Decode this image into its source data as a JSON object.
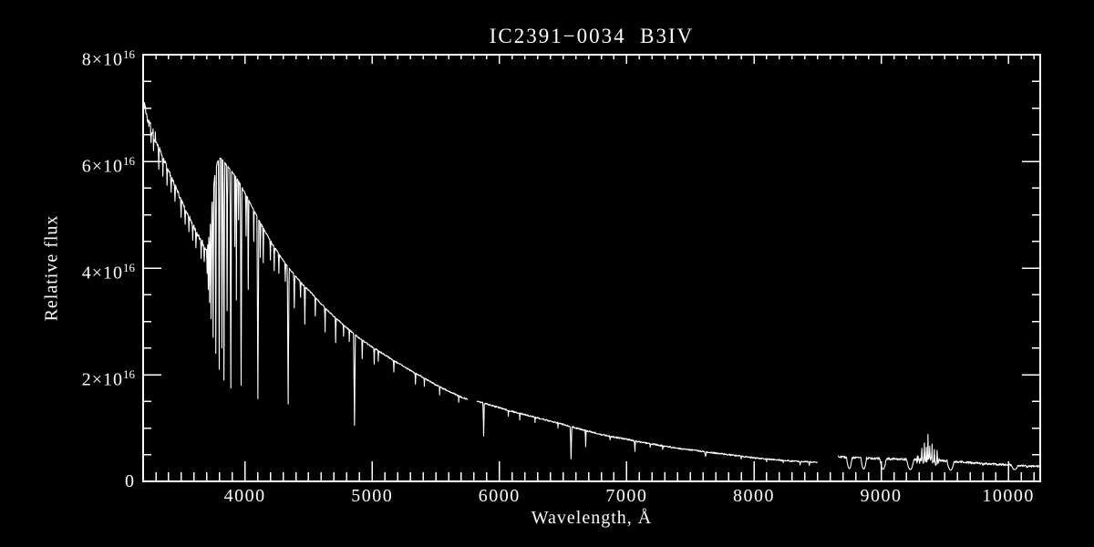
{
  "background_color": "#000000",
  "foreground_color": "#ffffff",
  "chart_data": {
    "type": "line",
    "title": "IC2391−0034  B3IV",
    "xlabel": "Wavelength, Å",
    "ylabel": "Relative flux",
    "xlim": [
      3200,
      10250
    ],
    "ylim": [
      0,
      8e+16
    ],
    "flux_unit": 1e+16,
    "grid": false,
    "legend": "none",
    "frame": "full box, inward ticks",
    "line_color": "#ffffff",
    "x_major_ticks": [
      4000,
      5000,
      6000,
      7000,
      8000,
      9000,
      10000
    ],
    "x_major_labels": [
      "4000",
      "5000",
      "6000",
      "7000",
      "8000",
      "9000",
      "10000"
    ],
    "x_minor_step": 100,
    "y_major_ticks_1e16": [
      0,
      2,
      4,
      6,
      8
    ],
    "y_major_labels": [
      "0",
      "2×10^16",
      "4×10^16",
      "6×10^16",
      "8×10^16"
    ],
    "y_minor_step_1e16": 0.5,
    "gaps_angstrom": [
      [
        5748,
        5824
      ],
      [
        8500,
        8660
      ]
    ],
    "continuum_1e16": [
      [
        3206,
        7.0
      ],
      [
        3225,
        6.85
      ],
      [
        3250,
        6.68
      ],
      [
        3275,
        6.53
      ],
      [
        3300,
        6.4
      ],
      [
        3330,
        6.22
      ],
      [
        3360,
        6.05
      ],
      [
        3400,
        5.82
      ],
      [
        3440,
        5.6
      ],
      [
        3480,
        5.38
      ],
      [
        3520,
        5.17
      ],
      [
        3560,
        4.97
      ],
      [
        3600,
        4.78
      ],
      [
        3640,
        4.58
      ],
      [
        3670,
        4.46
      ],
      [
        3695,
        4.35
      ],
      [
        3710,
        4.45
      ],
      [
        3725,
        4.75
      ],
      [
        3740,
        5.15
      ],
      [
        3755,
        5.55
      ],
      [
        3770,
        5.85
      ],
      [
        3785,
        6.0
      ],
      [
        3800,
        6.05
      ],
      [
        3815,
        6.05
      ],
      [
        3830,
        6.0
      ],
      [
        3850,
        5.95
      ],
      [
        3875,
        5.88
      ],
      [
        3900,
        5.8
      ],
      [
        3925,
        5.72
      ],
      [
        3950,
        5.63
      ],
      [
        3975,
        5.52
      ],
      [
        4000,
        5.4
      ],
      [
        4030,
        5.28
      ],
      [
        4070,
        5.08
      ],
      [
        4110,
        4.9
      ],
      [
        4160,
        4.68
      ],
      [
        4210,
        4.47
      ],
      [
        4270,
        4.25
      ],
      [
        4330,
        4.05
      ],
      [
        4390,
        3.87
      ],
      [
        4450,
        3.7
      ],
      [
        4515,
        3.55
      ],
      [
        4580,
        3.38
      ],
      [
        4650,
        3.2
      ],
      [
        4720,
        3.05
      ],
      [
        4800,
        2.88
      ],
      [
        4900,
        2.68
      ],
      [
        5000,
        2.52
      ],
      [
        5100,
        2.37
      ],
      [
        5200,
        2.22
      ],
      [
        5300,
        2.08
      ],
      [
        5400,
        1.95
      ],
      [
        5500,
        1.81
      ],
      [
        5600,
        1.69
      ],
      [
        5700,
        1.58
      ],
      [
        5748,
        1.54
      ],
      [
        5824,
        1.5
      ],
      [
        5900,
        1.45
      ],
      [
        6000,
        1.38
      ],
      [
        6100,
        1.31
      ],
      [
        6200,
        1.25
      ],
      [
        6300,
        1.19
      ],
      [
        6400,
        1.13
      ],
      [
        6500,
        1.07
      ],
      [
        6600,
        1.0
      ],
      [
        6700,
        0.94
      ],
      [
        6800,
        0.88
      ],
      [
        6900,
        0.83
      ],
      [
        7000,
        0.79
      ],
      [
        7100,
        0.74
      ],
      [
        7200,
        0.7
      ],
      [
        7300,
        0.66
      ],
      [
        7400,
        0.62
      ],
      [
        7500,
        0.59
      ],
      [
        7600,
        0.56
      ],
      [
        7700,
        0.53
      ],
      [
        7800,
        0.5
      ],
      [
        7900,
        0.47
      ],
      [
        8000,
        0.44
      ],
      [
        8100,
        0.42
      ],
      [
        8200,
        0.4
      ],
      [
        8300,
        0.38
      ],
      [
        8400,
        0.37
      ],
      [
        8500,
        0.36
      ],
      [
        8660,
        0.46
      ],
      [
        8800,
        0.44
      ],
      [
        8950,
        0.43
      ],
      [
        9100,
        0.42
      ],
      [
        9250,
        0.41
      ],
      [
        9400,
        0.4
      ],
      [
        9550,
        0.38
      ],
      [
        9700,
        0.35
      ],
      [
        9850,
        0.33
      ],
      [
        10000,
        0.31
      ],
      [
        10120,
        0.29
      ],
      [
        10244,
        0.28
      ]
    ],
    "absorption_lines_1e16": [
      [
        3262,
        6.35,
        4
      ],
      [
        3282,
        6.2,
        4
      ],
      [
        3323,
        5.85,
        4
      ],
      [
        3355,
        5.72,
        4
      ],
      [
        3388,
        5.55,
        4
      ],
      [
        3420,
        5.42,
        4
      ],
      [
        3450,
        5.25,
        4
      ],
      [
        3498,
        4.95,
        4
      ],
      [
        3530,
        4.82,
        4
      ],
      [
        3560,
        4.68,
        4
      ],
      [
        3590,
        4.52,
        4
      ],
      [
        3615,
        4.38,
        4
      ],
      [
        3656,
        4.18,
        4
      ],
      [
        3680,
        4.12,
        4
      ],
      [
        3703,
        3.9,
        4
      ],
      [
        3712,
        3.6,
        4
      ],
      [
        3722,
        3.35,
        4
      ],
      [
        3734,
        3.05,
        5
      ],
      [
        3750,
        2.7,
        5
      ],
      [
        3771,
        2.4,
        5
      ],
      [
        3798,
        2.1,
        5
      ],
      [
        3819,
        2.5,
        4
      ],
      [
        3835,
        1.9,
        6
      ],
      [
        3860,
        3.2,
        4
      ],
      [
        3889,
        1.75,
        6
      ],
      [
        3920,
        4.4,
        3
      ],
      [
        3933,
        3.4,
        3
      ],
      [
        3950,
        4.9,
        3
      ],
      [
        3970,
        1.8,
        6
      ],
      [
        4009,
        4.6,
        3
      ],
      [
        4026,
        3.6,
        4
      ],
      [
        4070,
        4.5,
        3
      ],
      [
        4102,
        1.55,
        7
      ],
      [
        4121,
        4.2,
        3
      ],
      [
        4144,
        4.1,
        3
      ],
      [
        4200,
        4.15,
        3
      ],
      [
        4230,
        3.95,
        3
      ],
      [
        4267,
        3.9,
        3
      ],
      [
        4317,
        3.75,
        3
      ],
      [
        4340,
        1.45,
        7
      ],
      [
        4388,
        3.25,
        4
      ],
      [
        4437,
        3.45,
        3
      ],
      [
        4471,
        2.95,
        4
      ],
      [
        4553,
        3.1,
        3
      ],
      [
        4630,
        2.8,
        3
      ],
      [
        4713,
        2.6,
        3
      ],
      [
        4775,
        2.72,
        2
      ],
      [
        4820,
        2.62,
        2
      ],
      [
        4861,
        1.05,
        7
      ],
      [
        4922,
        2.3,
        3
      ],
      [
        5016,
        2.2,
        3
      ],
      [
        5048,
        2.25,
        2
      ],
      [
        5170,
        2.05,
        3
      ],
      [
        5340,
        1.82,
        3
      ],
      [
        5410,
        1.78,
        2
      ],
      [
        5530,
        1.62,
        2
      ],
      [
        5680,
        1.48,
        2
      ],
      [
        5876,
        0.85,
        5
      ],
      [
        6070,
        1.22,
        2
      ],
      [
        6160,
        1.15,
        2
      ],
      [
        6280,
        1.1,
        2
      ],
      [
        6460,
        1.0,
        2
      ],
      [
        6563,
        0.42,
        6
      ],
      [
        6678,
        0.65,
        4
      ],
      [
        6870,
        0.78,
        4
      ],
      [
        7065,
        0.56,
        4
      ],
      [
        7185,
        0.64,
        3
      ],
      [
        7283,
        0.6,
        3
      ],
      [
        7620,
        0.47,
        7
      ],
      [
        7900,
        0.42,
        3
      ],
      [
        8100,
        0.37,
        3
      ],
      [
        8230,
        0.35,
        3
      ],
      [
        8363,
        0.31,
        5
      ],
      [
        8435,
        0.3,
        5
      ],
      [
        8750,
        0.24,
        22
      ],
      [
        8863,
        0.23,
        22
      ],
      [
        9015,
        0.23,
        25
      ],
      [
        9229,
        0.22,
        28
      ],
      [
        9430,
        0.3,
        10
      ],
      [
        9546,
        0.21,
        28
      ],
      [
        9800,
        0.3,
        8
      ],
      [
        10049,
        0.22,
        25
      ],
      [
        10150,
        0.26,
        8
      ]
    ],
    "noise_spikes_up_1e16": [
      [
        3210,
        7.1,
        3
      ],
      [
        3218,
        6.95,
        3
      ],
      [
        9320,
        0.62,
        4
      ],
      [
        9340,
        0.72,
        3
      ],
      [
        9355,
        0.64,
        3
      ],
      [
        9368,
        0.88,
        3
      ],
      [
        9382,
        0.66,
        3
      ],
      [
        9400,
        0.7,
        3
      ],
      [
        9418,
        0.6,
        3
      ],
      [
        9440,
        0.58,
        3
      ]
    ],
    "noise_regions": [
      {
        "range": [
          3206,
          3300
        ],
        "amp_1e16": 0.13
      },
      {
        "range": [
          3300,
          3700
        ],
        "amp_1e16": 0.04
      },
      {
        "range": [
          9280,
          9460
        ],
        "amp_1e16": 0.07
      },
      {
        "range": [
          8660,
          10244
        ],
        "amp_1e16": 0.02
      }
    ],
    "base_noise_amp_1e16": 0.013
  }
}
